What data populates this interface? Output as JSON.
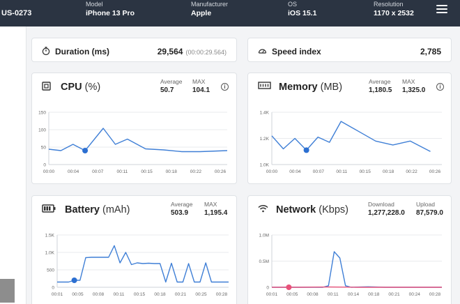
{
  "header": {
    "device_id": "US-0273",
    "fields": [
      {
        "label": "Model",
        "value": "iPhone 13 Pro"
      },
      {
        "label": "Manufacturer",
        "value": "Apple"
      },
      {
        "label": "OS",
        "value": "iOS 15.1"
      },
      {
        "label": "Resolution",
        "value": "1170 x 2532"
      }
    ]
  },
  "summary": {
    "duration": {
      "label": "Duration (ms)",
      "value": "29,564",
      "sub": "(00:00:29.564)"
    },
    "speed_index": {
      "label": "Speed index",
      "value": "2,785"
    }
  },
  "charts": {
    "cpu": {
      "title": "CPU",
      "unit": "(%)",
      "metrics": [
        {
          "label": "Average",
          "value": "50.7"
        },
        {
          "label": "MAX",
          "value": "104.1"
        }
      ],
      "icon": "cpu-icon",
      "y_ticks": [
        "150",
        "100",
        "50",
        "0"
      ],
      "x_ticks": [
        "00:00",
        "00:04",
        "00:07",
        "00:11",
        "00:15",
        "00:18",
        "00:22",
        "00:26"
      ]
    },
    "memory": {
      "title": "Memory",
      "unit": "(MB)",
      "metrics": [
        {
          "label": "Average",
          "value": "1,180.5"
        },
        {
          "label": "MAX",
          "value": "1,325.0"
        }
      ],
      "icon": "memory-icon",
      "y_ticks": [
        "1.4K",
        "1.2K",
        "1.0K"
      ],
      "x_ticks": [
        "00:00",
        "00:04",
        "00:07",
        "00:11",
        "00:15",
        "00:18",
        "00:22",
        "00:26"
      ]
    },
    "battery": {
      "title": "Battery",
      "unit": "(mAh)",
      "metrics": [
        {
          "label": "Average",
          "value": "503.9"
        },
        {
          "label": "MAX",
          "value": "1,195.4"
        }
      ],
      "icon": "battery-icon",
      "y_ticks": [
        "1.5K",
        "1.0K",
        "500",
        "0"
      ],
      "x_ticks": [
        "00:01",
        "00:05",
        "00:08",
        "00:11",
        "00:15",
        "00:18",
        "00:21",
        "00:25",
        "00:28"
      ]
    },
    "network": {
      "title": "Network",
      "unit": "(Kbps)",
      "metrics": [
        {
          "label": "Download",
          "value": "1,277,228.0"
        },
        {
          "label": "Upload",
          "value": "87,579.0"
        }
      ],
      "icon": "wifi-icon",
      "y_ticks": [
        "1.0M",
        "0.5M",
        "0"
      ],
      "x_ticks": [
        "00:01",
        "00:05",
        "00:08",
        "00:11",
        "00:14",
        "00:18",
        "00:21",
        "00:24",
        "00:28"
      ]
    }
  },
  "chart_data": [
    {
      "type": "line",
      "name": "cpu",
      "ylim": [
        0,
        150
      ],
      "xlim": [
        0,
        29.5
      ],
      "series": [
        {
          "color": "#3f7fd6",
          "x": [
            0,
            2,
            4,
            6,
            9,
            11,
            13,
            16,
            19,
            22,
            25,
            29.5
          ],
          "y": [
            44,
            40,
            58,
            40,
            104,
            58,
            73,
            45,
            42,
            37,
            37,
            40
          ]
        }
      ],
      "marker": {
        "x": 6,
        "y": 40,
        "color": "#2c6fd1"
      }
    },
    {
      "type": "line",
      "name": "memory",
      "ylim": [
        1000,
        1400
      ],
      "xlim": [
        0,
        29.5
      ],
      "series": [
        {
          "color": "#3f7fd6",
          "x": [
            0,
            2,
            4,
            6,
            8,
            10,
            12,
            15,
            18,
            21,
            24,
            27.5
          ],
          "y": [
            1220,
            1120,
            1200,
            1110,
            1210,
            1170,
            1330,
            1255,
            1180,
            1150,
            1180,
            1100
          ]
        }
      ],
      "marker": {
        "x": 6,
        "y": 1110,
        "color": "#2c6fd1"
      }
    },
    {
      "type": "line",
      "name": "battery",
      "ylim": [
        0,
        1500
      ],
      "xlim": [
        0,
        30
      ],
      "series": [
        {
          "color": "#3f7fd6",
          "x": [
            0,
            1,
            2,
            3,
            4,
            5,
            6,
            7,
            8,
            9,
            10,
            11,
            12,
            13,
            14,
            15,
            16,
            17,
            18,
            19,
            20,
            21,
            22,
            23,
            24,
            25,
            26,
            27,
            28,
            29,
            30
          ],
          "y": [
            150,
            150,
            150,
            200,
            200,
            850,
            860,
            860,
            860,
            860,
            1195,
            700,
            1000,
            650,
            700,
            680,
            690,
            680,
            680,
            150,
            690,
            150,
            150,
            680,
            150,
            150,
            700,
            150,
            150,
            150,
            150
          ]
        }
      ],
      "marker": {
        "x": 3,
        "y": 200,
        "color": "#2c6fd1"
      }
    },
    {
      "type": "line",
      "name": "network",
      "ylim": [
        0,
        1000000
      ],
      "xlim": [
        0,
        30
      ],
      "series": [
        {
          "name": "Download",
          "color": "#3f7fd6",
          "x": [
            0,
            3,
            6,
            9,
            10,
            11,
            12,
            13,
            14,
            17,
            20,
            30
          ],
          "y": [
            0,
            0,
            0,
            0,
            30000,
            680000,
            560000,
            30000,
            0,
            10000,
            0,
            0
          ]
        },
        {
          "name": "Upload",
          "color": "#e8527a",
          "x": [
            0,
            5,
            10,
            15,
            20,
            25,
            30
          ],
          "y": [
            0,
            0,
            5000,
            0,
            0,
            0,
            0
          ]
        }
      ],
      "marker": {
        "x": 3,
        "y": 0,
        "color": "#e8527a"
      }
    }
  ]
}
